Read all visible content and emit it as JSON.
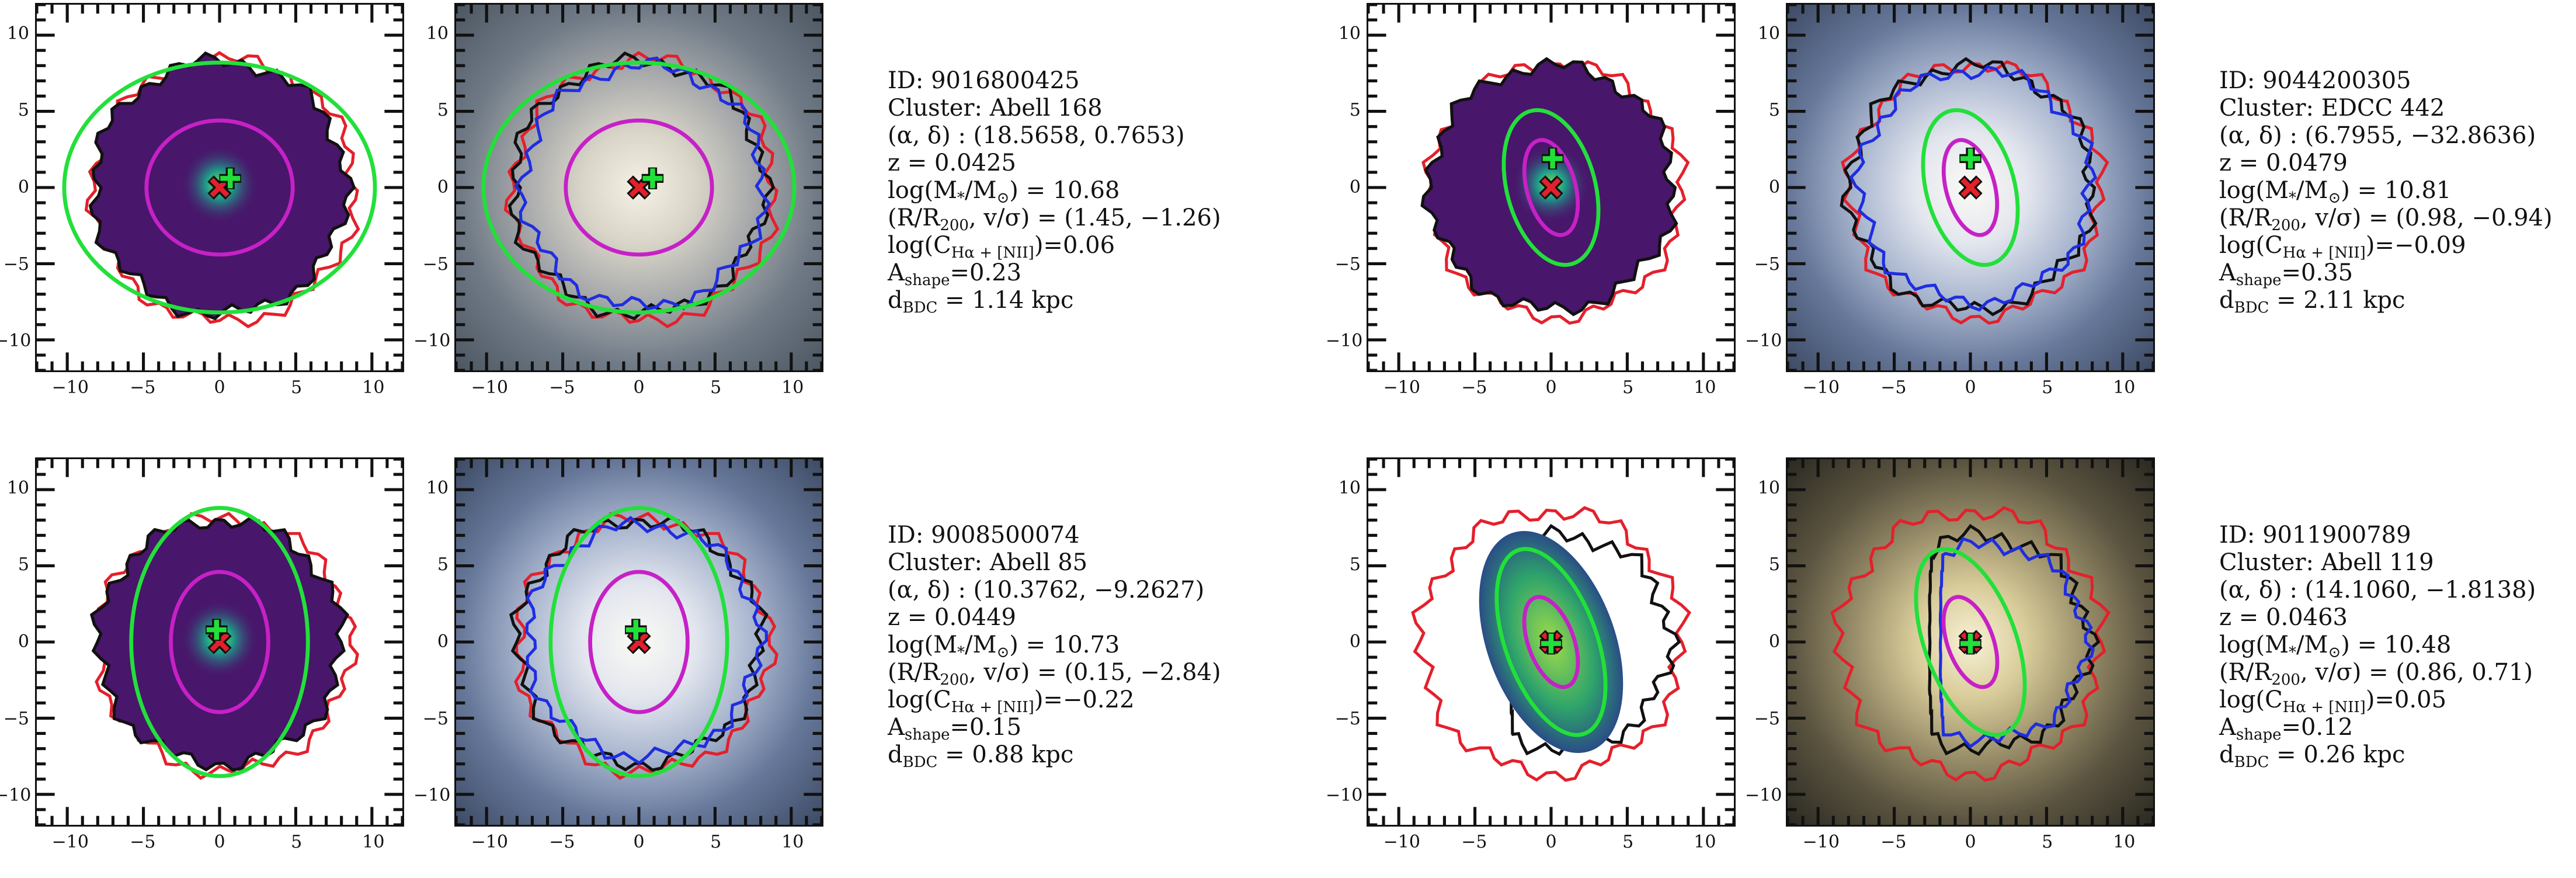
{
  "axes": {
    "range": [
      -12,
      12
    ],
    "major_ticks": [
      -10,
      -5,
      0,
      5,
      10
    ],
    "tick_labels": [
      "−10",
      "−5",
      "0",
      "5",
      "10"
    ]
  },
  "colors": {
    "outer_contour": "#e4202b",
    "galaxy_contour_map": "#111111",
    "galaxy_contour_image": "#1f2de0",
    "ellipse_large": "#22e03a",
    "ellipse_small": "#c621c6",
    "marker_cross": "#e4202b",
    "marker_plus": "#22e03a",
    "map_fill": "#48166b"
  },
  "galaxies": [
    {
      "id_line": "ID: 9016800425",
      "cluster_line": "Cluster: Abell 168",
      "coords_line": "(α, δ) : (18.5658, 0.7653)",
      "z_line": "z = 0.0425",
      "mass_prefix": "log(M",
      "mass_sub1": "*",
      "mass_mid": "/M",
      "mass_sub2": "⊙",
      "mass_suffix": ") = 10.68",
      "phase_prefix": "(R/R",
      "phase_sub": "200",
      "phase_suffix": ", v/σ) = (1.45, −1.26)",
      "c_prefix": "log(C",
      "c_sub": "Hα + [NII]",
      "c_suffix": ")=0.06",
      "a_prefix": "A",
      "a_sub": "shape",
      "a_suffix": "=0.23",
      "d_prefix": "d",
      "d_sub": "BDC",
      "d_suffix": " = 1.14 kpc",
      "measurements": {
        "x": 18.5658,
        "y": 0.7653,
        "z": 0.0425,
        "log_mass": 10.68,
        "R_R200": 1.45,
        "v_sigma": -1.26,
        "log_C": 0.06,
        "A_shape": 0.23,
        "d_BDC_kpc": 1.14
      },
      "map_markers": {
        "cross": [
          0,
          0
        ],
        "plus": [
          0.7,
          0.6
        ]
      },
      "image_markers": {
        "cross": [
          0,
          0
        ],
        "plus": [
          0.9,
          0.6
        ]
      },
      "ellipse_large": {
        "cx": 0,
        "cy": 0,
        "rx": 10.2,
        "ry": 8.2,
        "angle": 0
      },
      "ellipse_small": {
        "cx": 0,
        "cy": 0,
        "rx": 4.8,
        "ry": 4.4,
        "angle": 0
      },
      "galaxy_size": 8.3,
      "image_palette": "spiral"
    },
    {
      "id_line": "ID: 9044200305",
      "cluster_line": "Cluster: EDCC 442",
      "coords_line": "(α, δ) : (6.7955, −32.8636)",
      "z_line": "z = 0.0479",
      "mass_prefix": "log(M",
      "mass_sub1": "*",
      "mass_mid": "/M",
      "mass_sub2": "⊙",
      "mass_suffix": ") = 10.81",
      "phase_prefix": "(R/R",
      "phase_sub": "200",
      "phase_suffix": ", v/σ) = (0.98, −0.94)",
      "c_prefix": "log(C",
      "c_sub": "Hα + [NII]",
      "c_suffix": ")=−0.09",
      "a_prefix": "A",
      "a_sub": "shape",
      "a_suffix": "=0.35",
      "d_prefix": "d",
      "d_sub": "BDC",
      "d_suffix": " = 2.11 kpc",
      "measurements": {
        "x": 6.7955,
        "y": -32.8636,
        "z": 0.0479,
        "log_mass": 10.81,
        "R_R200": 0.98,
        "v_sigma": -0.94,
        "log_C": -0.09,
        "A_shape": 0.35,
        "d_BDC_kpc": 2.11
      },
      "map_markers": {
        "cross": [
          0,
          0
        ],
        "plus": [
          0.1,
          1.9
        ]
      },
      "image_markers": {
        "cross": [
          0,
          0
        ],
        "plus": [
          0,
          1.9
        ]
      },
      "ellipse_large": {
        "cx": 0,
        "cy": 0,
        "rx": 2.9,
        "ry": 5.2,
        "angle": 15
      },
      "ellipse_small": {
        "cx": 0,
        "cy": 0,
        "rx": 1.6,
        "ry": 3.2,
        "angle": 15
      },
      "galaxy_size": 8.0,
      "image_palette": "blue"
    },
    {
      "id_line": "ID: 9008500074",
      "cluster_line": "Cluster: Abell 85",
      "coords_line": "(α, δ) : (10.3762, −9.2627)",
      "z_line": "z = 0.0449",
      "mass_prefix": "log(M",
      "mass_sub1": "*",
      "mass_mid": "/M",
      "mass_sub2": "⊙",
      "mass_suffix": ") = 10.73",
      "phase_prefix": "(R/R",
      "phase_sub": "200",
      "phase_suffix": ", v/σ) = (0.15, −2.84)",
      "c_prefix": "log(C",
      "c_sub": "Hα + [NII]",
      "c_suffix": ")=−0.22",
      "a_prefix": "A",
      "a_sub": "shape",
      "a_suffix": "=0.15",
      "d_prefix": "d",
      "d_sub": "BDC",
      "d_suffix": " = 0.88 kpc",
      "measurements": {
        "x": 10.3762,
        "y": -9.2627,
        "z": 0.0449,
        "log_mass": 10.73,
        "R_R200": 0.15,
        "v_sigma": -2.84,
        "log_C": -0.22,
        "A_shape": 0.15,
        "d_BDC_kpc": 0.88
      },
      "map_markers": {
        "cross": [
          0,
          0
        ],
        "plus": [
          -0.2,
          0.8
        ]
      },
      "image_markers": {
        "cross": [
          0,
          0
        ],
        "plus": [
          -0.2,
          0.8
        ]
      },
      "ellipse_large": {
        "cx": 0,
        "cy": 0,
        "rx": 5.8,
        "ry": 8.8,
        "angle": 0
      },
      "ellipse_small": {
        "cx": 0,
        "cy": 0,
        "rx": 3.2,
        "ry": 4.6,
        "angle": 0
      },
      "galaxy_size": 8.0,
      "image_palette": "blue"
    },
    {
      "id_line": "ID: 9011900789",
      "cluster_line": "Cluster: Abell 119",
      "coords_line": "(α, δ) : (14.1060, −1.8138)",
      "z_line": "z = 0.0463",
      "mass_prefix": "log(M",
      "mass_sub1": "*",
      "mass_mid": "/M",
      "mass_sub2": "⊙",
      "mass_suffix": ") = 10.48",
      "phase_prefix": "(R/R",
      "phase_sub": "200",
      "phase_suffix": ", v/σ) = (0.86, 0.71)",
      "c_prefix": "log(C",
      "c_sub": "Hα + [NII]",
      "c_suffix": ")=0.05",
      "a_prefix": "A",
      "a_sub": "shape",
      "a_suffix": "=0.12",
      "d_prefix": "d",
      "d_sub": "BDC",
      "d_suffix": " = 0.26 kpc",
      "measurements": {
        "x": 14.106,
        "y": -1.8138,
        "z": 0.0463,
        "log_mass": 10.48,
        "R_R200": 0.86,
        "v_sigma": 0.71,
        "log_C": 0.05,
        "A_shape": 0.12,
        "d_BDC_kpc": 0.26
      },
      "map_markers": {
        "cross": [
          0,
          0
        ],
        "plus": [
          0,
          -0.1
        ]
      },
      "image_markers": {
        "cross": [
          0,
          0
        ],
        "plus": [
          0,
          -0.1
        ]
      },
      "ellipse_large": {
        "cx": 0,
        "cy": 0,
        "rx": 3.0,
        "ry": 6.4,
        "angle": 20
      },
      "ellipse_small": {
        "cx": 0,
        "cy": 0,
        "rx": 1.5,
        "ry": 3.1,
        "angle": 20
      },
      "galaxy_size": 7.0,
      "image_palette": "yellow"
    }
  ]
}
